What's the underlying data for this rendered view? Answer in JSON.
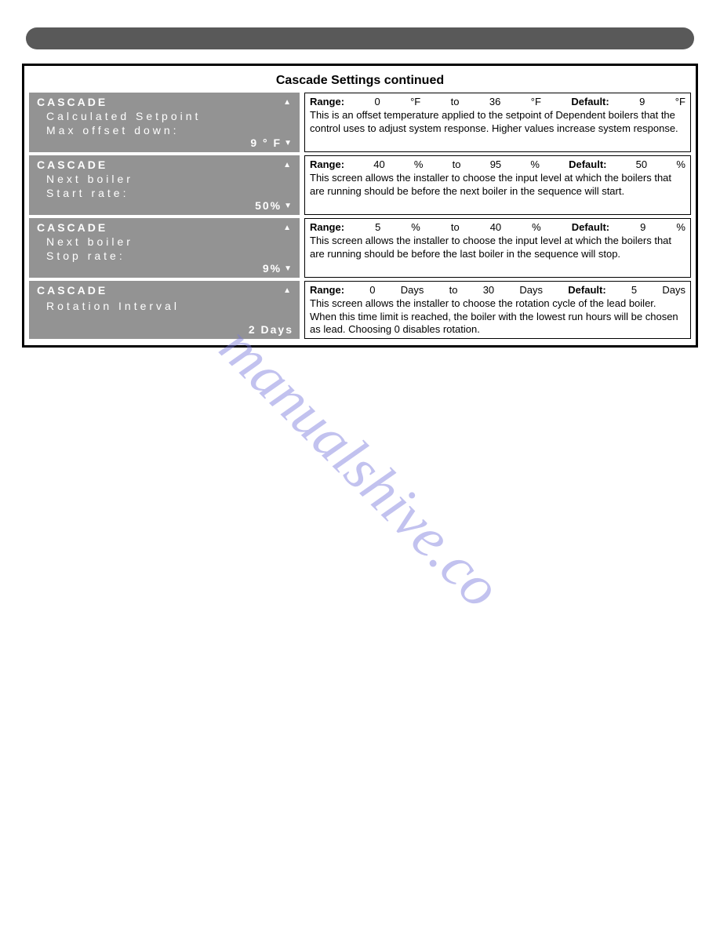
{
  "section_title": "Cascade Settings continued",
  "watermark": "manualshive.co",
  "rows": [
    {
      "lcd": {
        "header": "CASCADE",
        "line1": "Calculated Setpoint",
        "line2": "Max offset down:",
        "value": "9 ° F"
      },
      "desc": {
        "range_label": "Range:",
        "range_min": "0",
        "range_min_unit": "°F",
        "range_conn": "to",
        "range_max": "36",
        "range_max_unit": "°F",
        "default_label": "Default:",
        "default_val": "9",
        "default_unit": "°F",
        "text": "This is an offset temperature applied to the setpoint of Dependent boilers that the control uses to adjust system response.  Higher values increase system response."
      }
    },
    {
      "lcd": {
        "header": "CASCADE",
        "line1": "Next boiler",
        "line2": "Start rate:",
        "value": "50%"
      },
      "desc": {
        "range_label": "Range:",
        "range_min": "40",
        "range_min_unit": "%",
        "range_conn": "to",
        "range_max": "95",
        "range_max_unit": "%",
        "default_label": "Default:",
        "default_val": "50",
        "default_unit": "%",
        "text": "This screen allows the installer to choose the input level at which the boilers that are running should be before the next boiler in the sequence will start."
      }
    },
    {
      "lcd": {
        "header": "CASCADE",
        "line1": "Next boiler",
        "line2": "Stop rate:",
        "value": "9%"
      },
      "desc": {
        "range_label": "Range:",
        "range_min": "5",
        "range_min_unit": "%",
        "range_conn": "to",
        "range_max": "40",
        "range_max_unit": "%",
        "default_label": "Default:",
        "default_val": "9",
        "default_unit": "%",
        "text": "This screen allows the installer to choose the input level at which the boilers that are running should be before the last boiler in the sequence will stop."
      }
    },
    {
      "lcd": {
        "header": "CASCADE",
        "line1": "",
        "line2": "Rotation Interval",
        "value": "2 Days",
        "no_arrow": true
      },
      "desc": {
        "range_label": "Range:",
        "range_min": "0",
        "range_min_unit": "Days",
        "range_conn": "to",
        "range_max": "30",
        "range_max_unit": "Days",
        "default_label": "Default:",
        "default_val": "5",
        "default_unit": "Days",
        "text": "This screen allows the installer to choose the rotation cycle of the lead boiler.  When this time limit is reached, the boiler with the lowest run hours will be chosen as lead. Choosing 0 disables rotation."
      }
    }
  ]
}
